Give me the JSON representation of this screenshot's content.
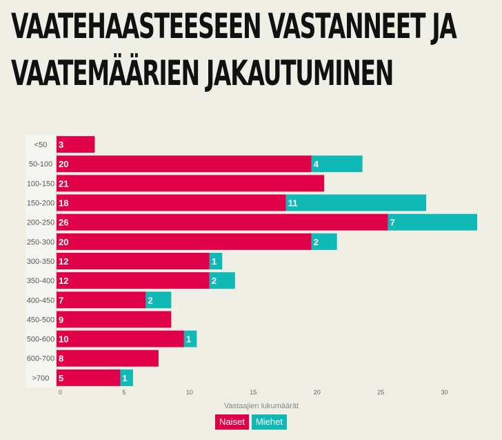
{
  "title": {
    "line1": "VAATEHAASTEESEEN VASTANNEET JA",
    "line2": "VAATEMÄÄRIEN JAKAUTUMINEN"
  },
  "chart_data": {
    "type": "bar",
    "orientation": "horizontal",
    "stacked": true,
    "categories": [
      "<50",
      "50-100",
      "100-150",
      "150-200",
      "200-250",
      "250-300",
      "300-350",
      "350-400",
      "400-450",
      "450-500",
      "500-600",
      "600-700",
      ">700"
    ],
    "series": [
      {
        "name": "Naiset",
        "color": "#e0004a",
        "values": [
          3,
          20,
          21,
          18,
          26,
          20,
          12,
          12,
          7,
          9,
          10,
          8,
          5
        ]
      },
      {
        "name": "Miehet",
        "color": "#0fb9b6",
        "values": [
          0,
          4,
          0,
          11,
          7,
          2,
          1,
          2,
          2,
          0,
          1,
          0,
          1
        ]
      }
    ],
    "xlabel": "Vastaajien lukumäärät",
    "xticks": [
      0,
      5,
      10,
      15,
      20,
      25,
      30
    ],
    "xlim": [
      0,
      33
    ],
    "legend_position": "bottom",
    "grid": false
  }
}
